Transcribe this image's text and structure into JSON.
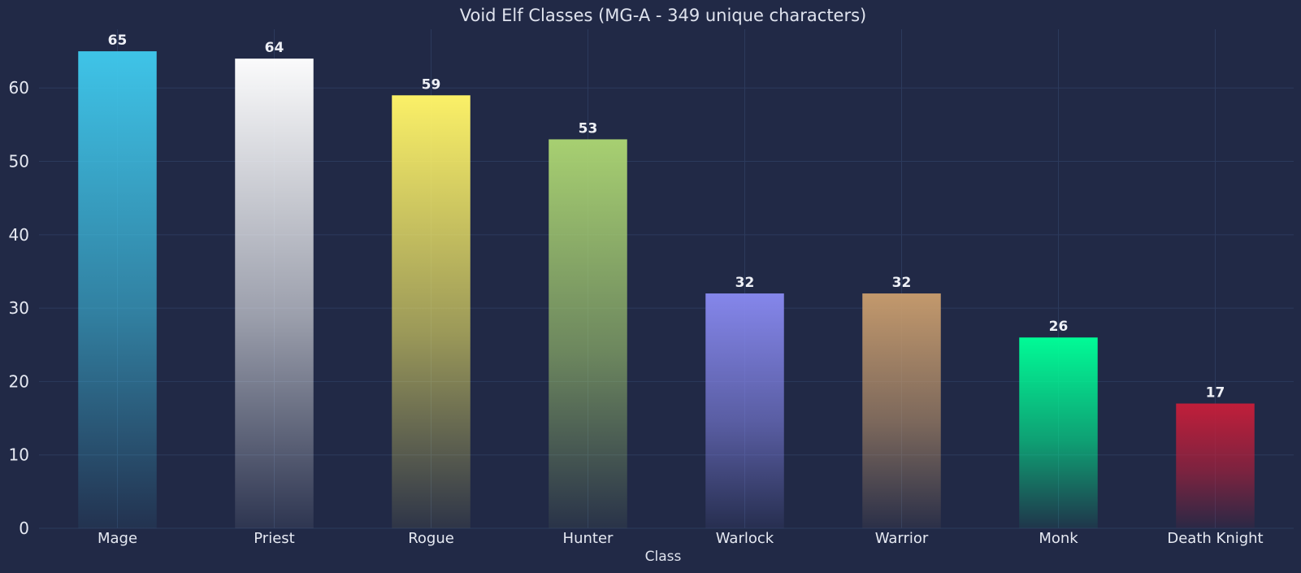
{
  "chart_data": {
    "type": "bar",
    "title": "Void Elf Classes (MG-A - 349 unique characters)",
    "xlabel": "Class",
    "ylabel": "",
    "ylim": [
      0,
      68
    ],
    "yticks": [
      0,
      10,
      20,
      30,
      40,
      50,
      60
    ],
    "grid": true,
    "categories": [
      "Mage",
      "Priest",
      "Rogue",
      "Hunter",
      "Warlock",
      "Warrior",
      "Monk",
      "Death Knight"
    ],
    "values": [
      65,
      64,
      59,
      53,
      32,
      32,
      26,
      17
    ],
    "colors": [
      "#3fc7eb",
      "#ffffff",
      "#fff468",
      "#aad372",
      "#8788ee",
      "#c69b6d",
      "#00ff98",
      "#c41e3a"
    ]
  },
  "background": "#212946"
}
